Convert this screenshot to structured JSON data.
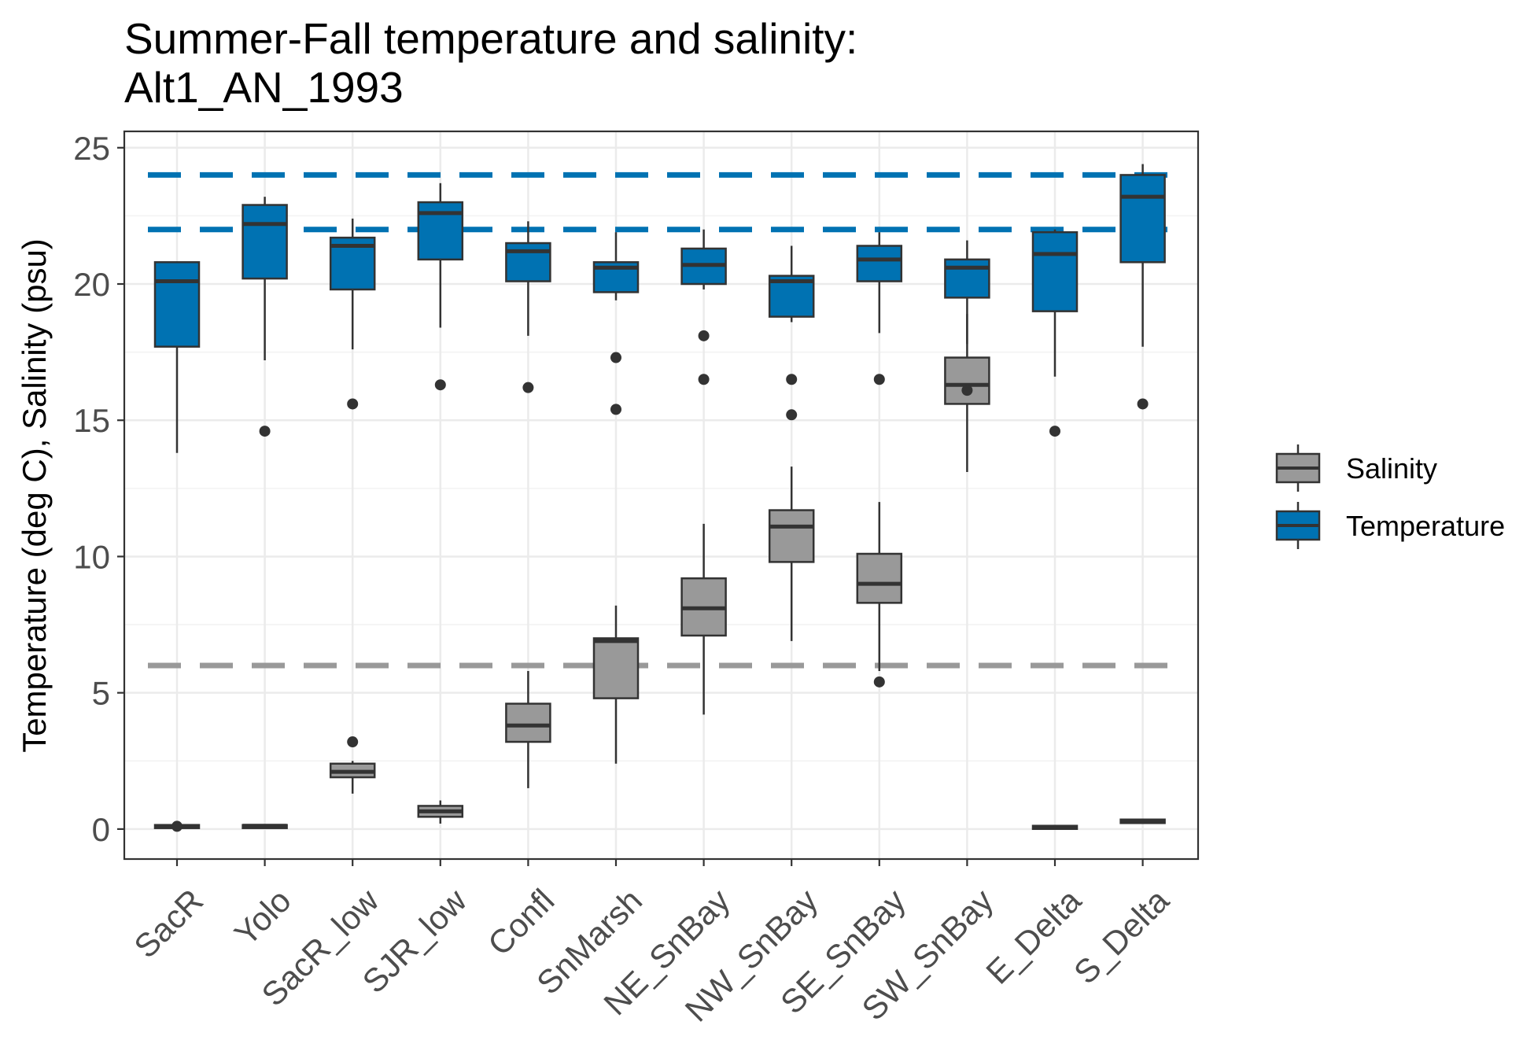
{
  "chart_data": {
    "type": "boxplot",
    "title_lines": [
      "Summer-Fall temperature and salinity:",
      " Alt1_AN_1993"
    ],
    "xlabel": "",
    "ylabel": "Temperature (deg C), Salinity (psu)",
    "ylim": [
      -1.1,
      25.6
    ],
    "yticks": [
      0,
      5,
      10,
      15,
      20,
      25
    ],
    "grid": true,
    "legend_position": "right",
    "categories": [
      "SacR",
      "Yolo",
      "SacR_low",
      "SJR_low",
      "Confl",
      "SnMarsh",
      "NE_SnBay",
      "NW_SnBay",
      "SE_SnBay",
      "SW_SnBay",
      "E_Delta",
      "S_Delta"
    ],
    "series": [
      {
        "name": "Salinity",
        "color": "#999999",
        "boxes": [
          {
            "category": "SacR",
            "whisker_low": 0.05,
            "q1": 0.05,
            "median": 0.1,
            "q3": 0.15,
            "whisker_high": 0.15,
            "outliers": [
              0.1
            ]
          },
          {
            "category": "Yolo",
            "whisker_low": 0.1,
            "q1": 0.1,
            "median": 0.12,
            "q3": 0.15,
            "whisker_high": 0.15,
            "outliers": []
          },
          {
            "category": "SacR_low",
            "whisker_low": 1.3,
            "q1": 1.9,
            "median": 2.1,
            "q3": 2.4,
            "whisker_high": 2.5,
            "outliers": [
              3.2
            ]
          },
          {
            "category": "SJR_low",
            "whisker_low": 0.2,
            "q1": 0.45,
            "median": 0.65,
            "q3": 0.85,
            "whisker_high": 1.05,
            "outliers": []
          },
          {
            "category": "Confl",
            "whisker_low": 1.5,
            "q1": 3.2,
            "median": 3.8,
            "q3": 4.6,
            "whisker_high": 5.8,
            "outliers": []
          },
          {
            "category": "SnMarsh",
            "whisker_low": 2.4,
            "q1": 4.8,
            "median": 6.9,
            "q3": 7.0,
            "whisker_high": 8.2,
            "outliers": []
          },
          {
            "category": "NE_SnBay",
            "whisker_low": 4.2,
            "q1": 7.1,
            "median": 8.1,
            "q3": 9.2,
            "whisker_high": 11.2,
            "outliers": []
          },
          {
            "category": "NW_SnBay",
            "whisker_low": 6.9,
            "q1": 9.8,
            "median": 11.1,
            "q3": 11.7,
            "whisker_high": 13.3,
            "outliers": []
          },
          {
            "category": "SE_SnBay",
            "whisker_low": 5.8,
            "q1": 8.3,
            "median": 9.0,
            "q3": 10.1,
            "whisker_high": 12.0,
            "outliers": [
              5.4
            ]
          },
          {
            "category": "SW_SnBay",
            "whisker_low": 13.1,
            "q1": 15.6,
            "median": 16.3,
            "q3": 17.3,
            "whisker_high": 18.9,
            "outliers": []
          },
          {
            "category": "E_Delta",
            "whisker_low": 0.05,
            "q1": 0.05,
            "median": 0.08,
            "q3": 0.12,
            "whisker_high": 0.12,
            "outliers": []
          },
          {
            "category": "S_Delta",
            "whisker_low": 0.22,
            "q1": 0.22,
            "median": 0.3,
            "q3": 0.35,
            "whisker_high": 0.35,
            "outliers": []
          }
        ]
      },
      {
        "name": "Temperature",
        "color": "#0072B2",
        "boxes": [
          {
            "category": "SacR",
            "whisker_low": 13.8,
            "q1": 17.7,
            "median": 20.1,
            "q3": 20.8,
            "whisker_high": 20.8,
            "outliers": []
          },
          {
            "category": "Yolo",
            "whisker_low": 17.2,
            "q1": 20.2,
            "median": 22.2,
            "q3": 22.9,
            "whisker_high": 23.2,
            "outliers": [
              14.6
            ]
          },
          {
            "category": "SacR_low",
            "whisker_low": 17.6,
            "q1": 19.8,
            "median": 21.4,
            "q3": 21.7,
            "whisker_high": 22.4,
            "outliers": [
              15.6
            ]
          },
          {
            "category": "SJR_low",
            "whisker_low": 18.4,
            "q1": 20.9,
            "median": 22.6,
            "q3": 23.0,
            "whisker_high": 23.7,
            "outliers": [
              16.3
            ]
          },
          {
            "category": "Confl",
            "whisker_low": 18.1,
            "q1": 20.1,
            "median": 21.2,
            "q3": 21.5,
            "whisker_high": 22.3,
            "outliers": [
              16.2
            ]
          },
          {
            "category": "SnMarsh",
            "whisker_low": 19.4,
            "q1": 19.7,
            "median": 20.6,
            "q3": 20.8,
            "whisker_high": 21.9,
            "outliers": [
              17.3,
              15.4
            ]
          },
          {
            "category": "NE_SnBay",
            "whisker_low": 19.8,
            "q1": 20.0,
            "median": 20.7,
            "q3": 21.3,
            "whisker_high": 22.0,
            "outliers": [
              18.1,
              16.5
            ]
          },
          {
            "category": "NW_SnBay",
            "whisker_low": 18.6,
            "q1": 18.8,
            "median": 20.1,
            "q3": 20.3,
            "whisker_high": 21.4,
            "outliers": [
              16.5,
              15.2
            ]
          },
          {
            "category": "SE_SnBay",
            "whisker_low": 18.2,
            "q1": 20.1,
            "median": 20.9,
            "q3": 21.4,
            "whisker_high": 21.9,
            "outliers": [
              16.5
            ]
          },
          {
            "category": "SW_SnBay",
            "whisker_low": 17.8,
            "q1": 19.5,
            "median": 20.6,
            "q3": 20.9,
            "whisker_high": 21.6,
            "outliers": [
              16.1
            ]
          },
          {
            "category": "E_Delta",
            "whisker_low": 16.6,
            "q1": 19.0,
            "median": 21.1,
            "q3": 21.9,
            "whisker_high": 22.0,
            "outliers": [
              14.6
            ]
          },
          {
            "category": "S_Delta",
            "whisker_low": 17.7,
            "q1": 20.8,
            "median": 23.2,
            "q3": 24.0,
            "whisker_high": 24.4,
            "outliers": [
              15.6
            ]
          }
        ]
      }
    ],
    "reference_lines": [
      {
        "y": 24,
        "color": "#0072B2",
        "style": "dashed"
      },
      {
        "y": 22,
        "color": "#0072B2",
        "style": "dashed"
      },
      {
        "y": 6,
        "color": "#999999",
        "style": "dashed"
      }
    ]
  }
}
